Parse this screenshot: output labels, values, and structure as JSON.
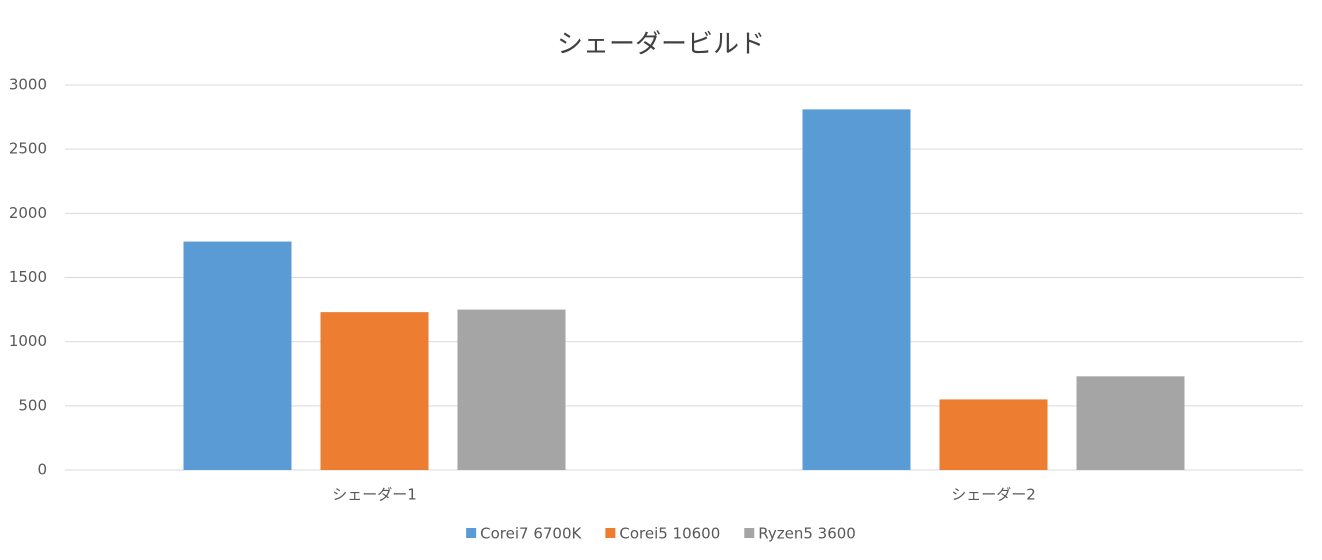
{
  "chart_data": {
    "type": "bar",
    "title": "シェーダービルド",
    "categories": [
      "シェーダー1",
      "シェーダー2"
    ],
    "series": [
      {
        "name": "Corei7 6700K",
        "color": "#5b9bd5",
        "values": [
          1780,
          2810
        ]
      },
      {
        "name": "Corei5 10600",
        "color": "#ed7d31",
        "values": [
          1230,
          550
        ]
      },
      {
        "name": "Ryzen5 3600",
        "color": "#a5a5a5",
        "values": [
          1250,
          730
        ]
      }
    ],
    "ylim": [
      0,
      3000
    ],
    "yticks": [
      0,
      500,
      1000,
      1500,
      2000,
      2500,
      3000
    ],
    "grid": true,
    "legend": "bottom"
  }
}
